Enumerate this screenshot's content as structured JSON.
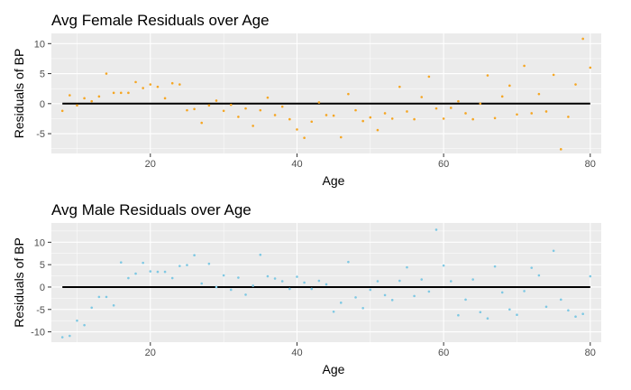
{
  "chart_data": [
    {
      "type": "scatter",
      "title": "Avg Female Residuals over Age",
      "xlabel": "Age",
      "ylabel": "Residuals of BP",
      "xlim": [
        6.5,
        81.5
      ],
      "ylim": [
        -8.3,
        11.7
      ],
      "x_ticks": [
        20,
        40,
        60,
        80
      ],
      "y_ticks": [
        -5,
        0,
        5,
        10
      ],
      "grid": true,
      "legend": "none",
      "point_color": "#f5a623",
      "reference_line": 0,
      "series": [
        {
          "x": [
            8,
            9,
            10,
            11,
            12,
            13,
            14,
            15,
            16,
            17,
            18,
            19,
            20,
            21,
            22,
            23,
            24,
            25,
            26,
            27,
            28,
            29,
            30,
            31,
            32,
            33,
            34,
            35,
            36,
            37,
            38,
            39,
            40,
            41,
            42,
            43,
            44,
            45,
            46,
            47,
            48,
            49,
            50,
            51,
            52,
            53,
            54,
            55,
            56,
            57,
            58,
            59,
            60,
            61,
            62,
            63,
            64,
            65,
            66,
            67,
            68,
            69,
            70,
            71,
            72,
            73,
            74,
            75,
            76,
            77,
            78,
            79,
            80
          ],
          "y": [
            -1.2,
            1.4,
            -0.3,
            0.9,
            0.4,
            1.2,
            5.0,
            1.8,
            1.8,
            1.8,
            3.6,
            2.6,
            3.2,
            2.8,
            0.9,
            3.4,
            3.2,
            -1.1,
            -0.9,
            -3.2,
            -0.3,
            0.5,
            -1.2,
            -0.2,
            -2.2,
            -0.8,
            -3.7,
            -1.1,
            1.0,
            -1.9,
            -0.5,
            -2.6,
            -4.3,
            -5.7,
            -3.0,
            0.2,
            -1.9,
            -2.0,
            -5.6,
            1.6,
            -1.1,
            -2.9,
            -2.3,
            -4.4,
            -1.6,
            -2.5,
            2.8,
            -1.3,
            -2.6,
            1.1,
            4.5,
            -0.8,
            -2.5,
            -0.7,
            0.4,
            -1.6,
            -2.6,
            0.0,
            4.7,
            -2.4,
            1.2,
            3.0,
            -1.8,
            6.3,
            -1.6,
            1.6,
            -1.3,
            4.8,
            -7.6,
            -2.2,
            3.2,
            10.8,
            6.0
          ]
        }
      ]
    },
    {
      "type": "scatter",
      "title": "Avg Male Residuals over Age",
      "xlabel": "Age",
      "ylabel": "Residuals of BP",
      "xlim": [
        6.5,
        81.5
      ],
      "ylim": [
        -12.3,
        14.3
      ],
      "x_ticks": [
        20,
        40,
        60,
        80
      ],
      "y_ticks": [
        -10,
        -5,
        0,
        5,
        10
      ],
      "grid": true,
      "legend": "none",
      "point_color": "#7ec8e3",
      "reference_line": 0,
      "series": [
        {
          "x": [
            8,
            9,
            10,
            11,
            12,
            13,
            14,
            15,
            16,
            17,
            18,
            19,
            20,
            21,
            22,
            23,
            24,
            25,
            26,
            27,
            28,
            29,
            30,
            31,
            32,
            33,
            34,
            35,
            36,
            37,
            38,
            39,
            40,
            41,
            42,
            43,
            44,
            45,
            46,
            47,
            48,
            49,
            50,
            51,
            52,
            53,
            54,
            55,
            56,
            57,
            58,
            59,
            60,
            61,
            62,
            63,
            64,
            65,
            66,
            67,
            68,
            69,
            70,
            71,
            72,
            73,
            74,
            75,
            76,
            77,
            78,
            79,
            80
          ],
          "y": [
            -11.2,
            -10.9,
            -7.5,
            -8.5,
            -4.6,
            -2.2,
            -2.2,
            -4.1,
            5.5,
            2.0,
            3.0,
            5.4,
            3.5,
            3.4,
            3.4,
            2.0,
            4.7,
            4.9,
            7.1,
            0.8,
            5.2,
            0.0,
            2.6,
            -0.6,
            2.1,
            -1.7,
            0.3,
            7.2,
            2.4,
            1.9,
            1.3,
            -0.4,
            2.3,
            1.0,
            -0.4,
            1.4,
            0.6,
            -5.5,
            -3.5,
            5.6,
            -2.3,
            -4.7,
            -0.6,
            1.3,
            -1.8,
            -2.9,
            1.4,
            4.4,
            -2.0,
            1.7,
            -1.0,
            12.8,
            4.8,
            1.3,
            -6.3,
            -2.8,
            1.7,
            -5.6,
            -7.0,
            4.6,
            -1.2,
            -5.0,
            -6.2,
            -0.9,
            4.3,
            2.6,
            -4.4,
            8.1,
            -2.8,
            -5.2,
            -6.6,
            -6.0,
            2.4
          ]
        }
      ]
    }
  ]
}
